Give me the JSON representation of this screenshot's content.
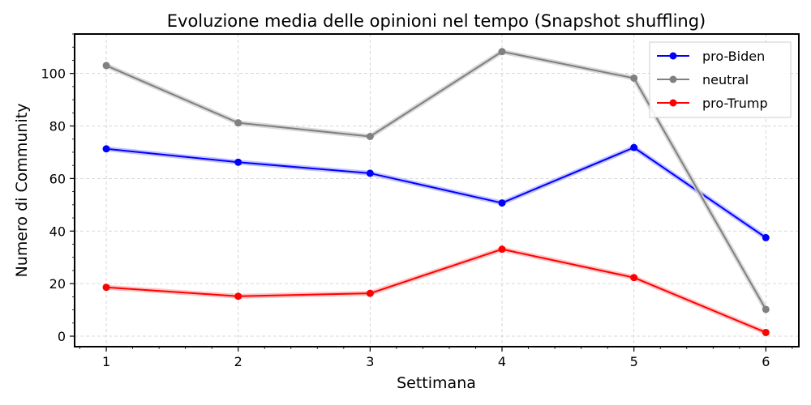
{
  "chart_data": {
    "type": "line",
    "title": "Evoluzione media delle opinioni nel tempo (Snapshot shuffling)",
    "xlabel": "Settimana",
    "ylabel": "Numero di Community",
    "x": [
      1,
      2,
      3,
      4,
      5,
      6
    ],
    "xlim": [
      0.76,
      6.25
    ],
    "ylim": [
      -4,
      115
    ],
    "xticks": [
      "1",
      "2",
      "3",
      "4",
      "5",
      "6"
    ],
    "yticks": [
      "0",
      "20",
      "40",
      "60",
      "80",
      "100"
    ],
    "grid": true,
    "legend_position": "top-right",
    "series": [
      {
        "name": "pro-Biden",
        "color": "#0000ff",
        "band": "#b3b3ff",
        "values": [
          71.3,
          66.2,
          62.0,
          50.7,
          71.8,
          37.5
        ]
      },
      {
        "name": "neutral",
        "color": "#808080",
        "band": "#cfcfcf",
        "values": [
          103.0,
          81.2,
          76.0,
          108.3,
          98.2,
          10.2
        ]
      },
      {
        "name": "pro-Trump",
        "color": "#ff0000",
        "band": "#ffb3b3",
        "values": [
          18.6,
          15.2,
          16.3,
          33.1,
          22.3,
          1.4
        ]
      }
    ]
  }
}
